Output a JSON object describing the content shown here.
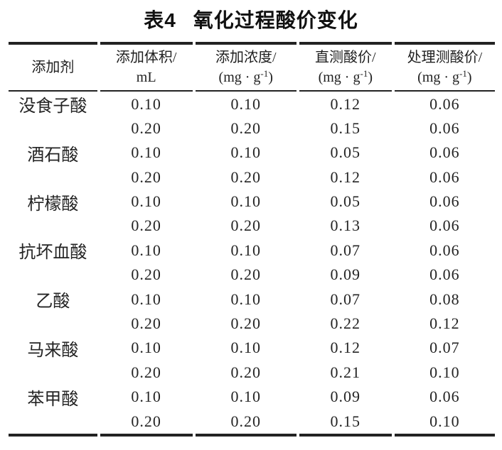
{
  "title": {
    "label": "表4",
    "text": "氧化过程酸价变化"
  },
  "table": {
    "columns": [
      {
        "id": "additive",
        "line1": "添加剂",
        "line2": ""
      },
      {
        "id": "volume",
        "line1": "添加体积/",
        "line2": "mL"
      },
      {
        "id": "concentration",
        "line1": "添加浓度/",
        "line2": "(mg · g",
        "sup": "-1",
        "line2_end": ")"
      },
      {
        "id": "direct-acid",
        "line1": "直测酸价/",
        "line2": "(mg · g",
        "sup": "-1",
        "line2_end": ")"
      },
      {
        "id": "treated-acid",
        "line1": "处理测酸价/",
        "line2": "(mg · g",
        "sup": "-1",
        "line2_end": ")"
      }
    ],
    "rows": [
      [
        "没食子酸",
        "0.10",
        "0.10",
        "0.12",
        "0.06"
      ],
      [
        "",
        "0.20",
        "0.20",
        "0.15",
        "0.06"
      ],
      [
        "酒石酸",
        "0.10",
        "0.10",
        "0.05",
        "0.06"
      ],
      [
        "",
        "0.20",
        "0.20",
        "0.12",
        "0.06"
      ],
      [
        "柠檬酸",
        "0.10",
        "0.10",
        "0.05",
        "0.06"
      ],
      [
        "",
        "0.20",
        "0.20",
        "0.13",
        "0.06"
      ],
      [
        "抗坏血酸",
        "0.10",
        "0.10",
        "0.07",
        "0.06"
      ],
      [
        "",
        "0.20",
        "0.20",
        "0.09",
        "0.06"
      ],
      [
        "乙酸",
        "0.10",
        "0.10",
        "0.07",
        "0.08"
      ],
      [
        "",
        "0.20",
        "0.20",
        "0.22",
        "0.12"
      ],
      [
        "马来酸",
        "0.10",
        "0.10",
        "0.12",
        "0.07"
      ],
      [
        "",
        "0.20",
        "0.20",
        "0.21",
        "0.10"
      ],
      [
        "苯甲酸",
        "0.10",
        "0.10",
        "0.09",
        "0.06"
      ],
      [
        "",
        "0.20",
        "0.20",
        "0.15",
        "0.10"
      ]
    ]
  }
}
